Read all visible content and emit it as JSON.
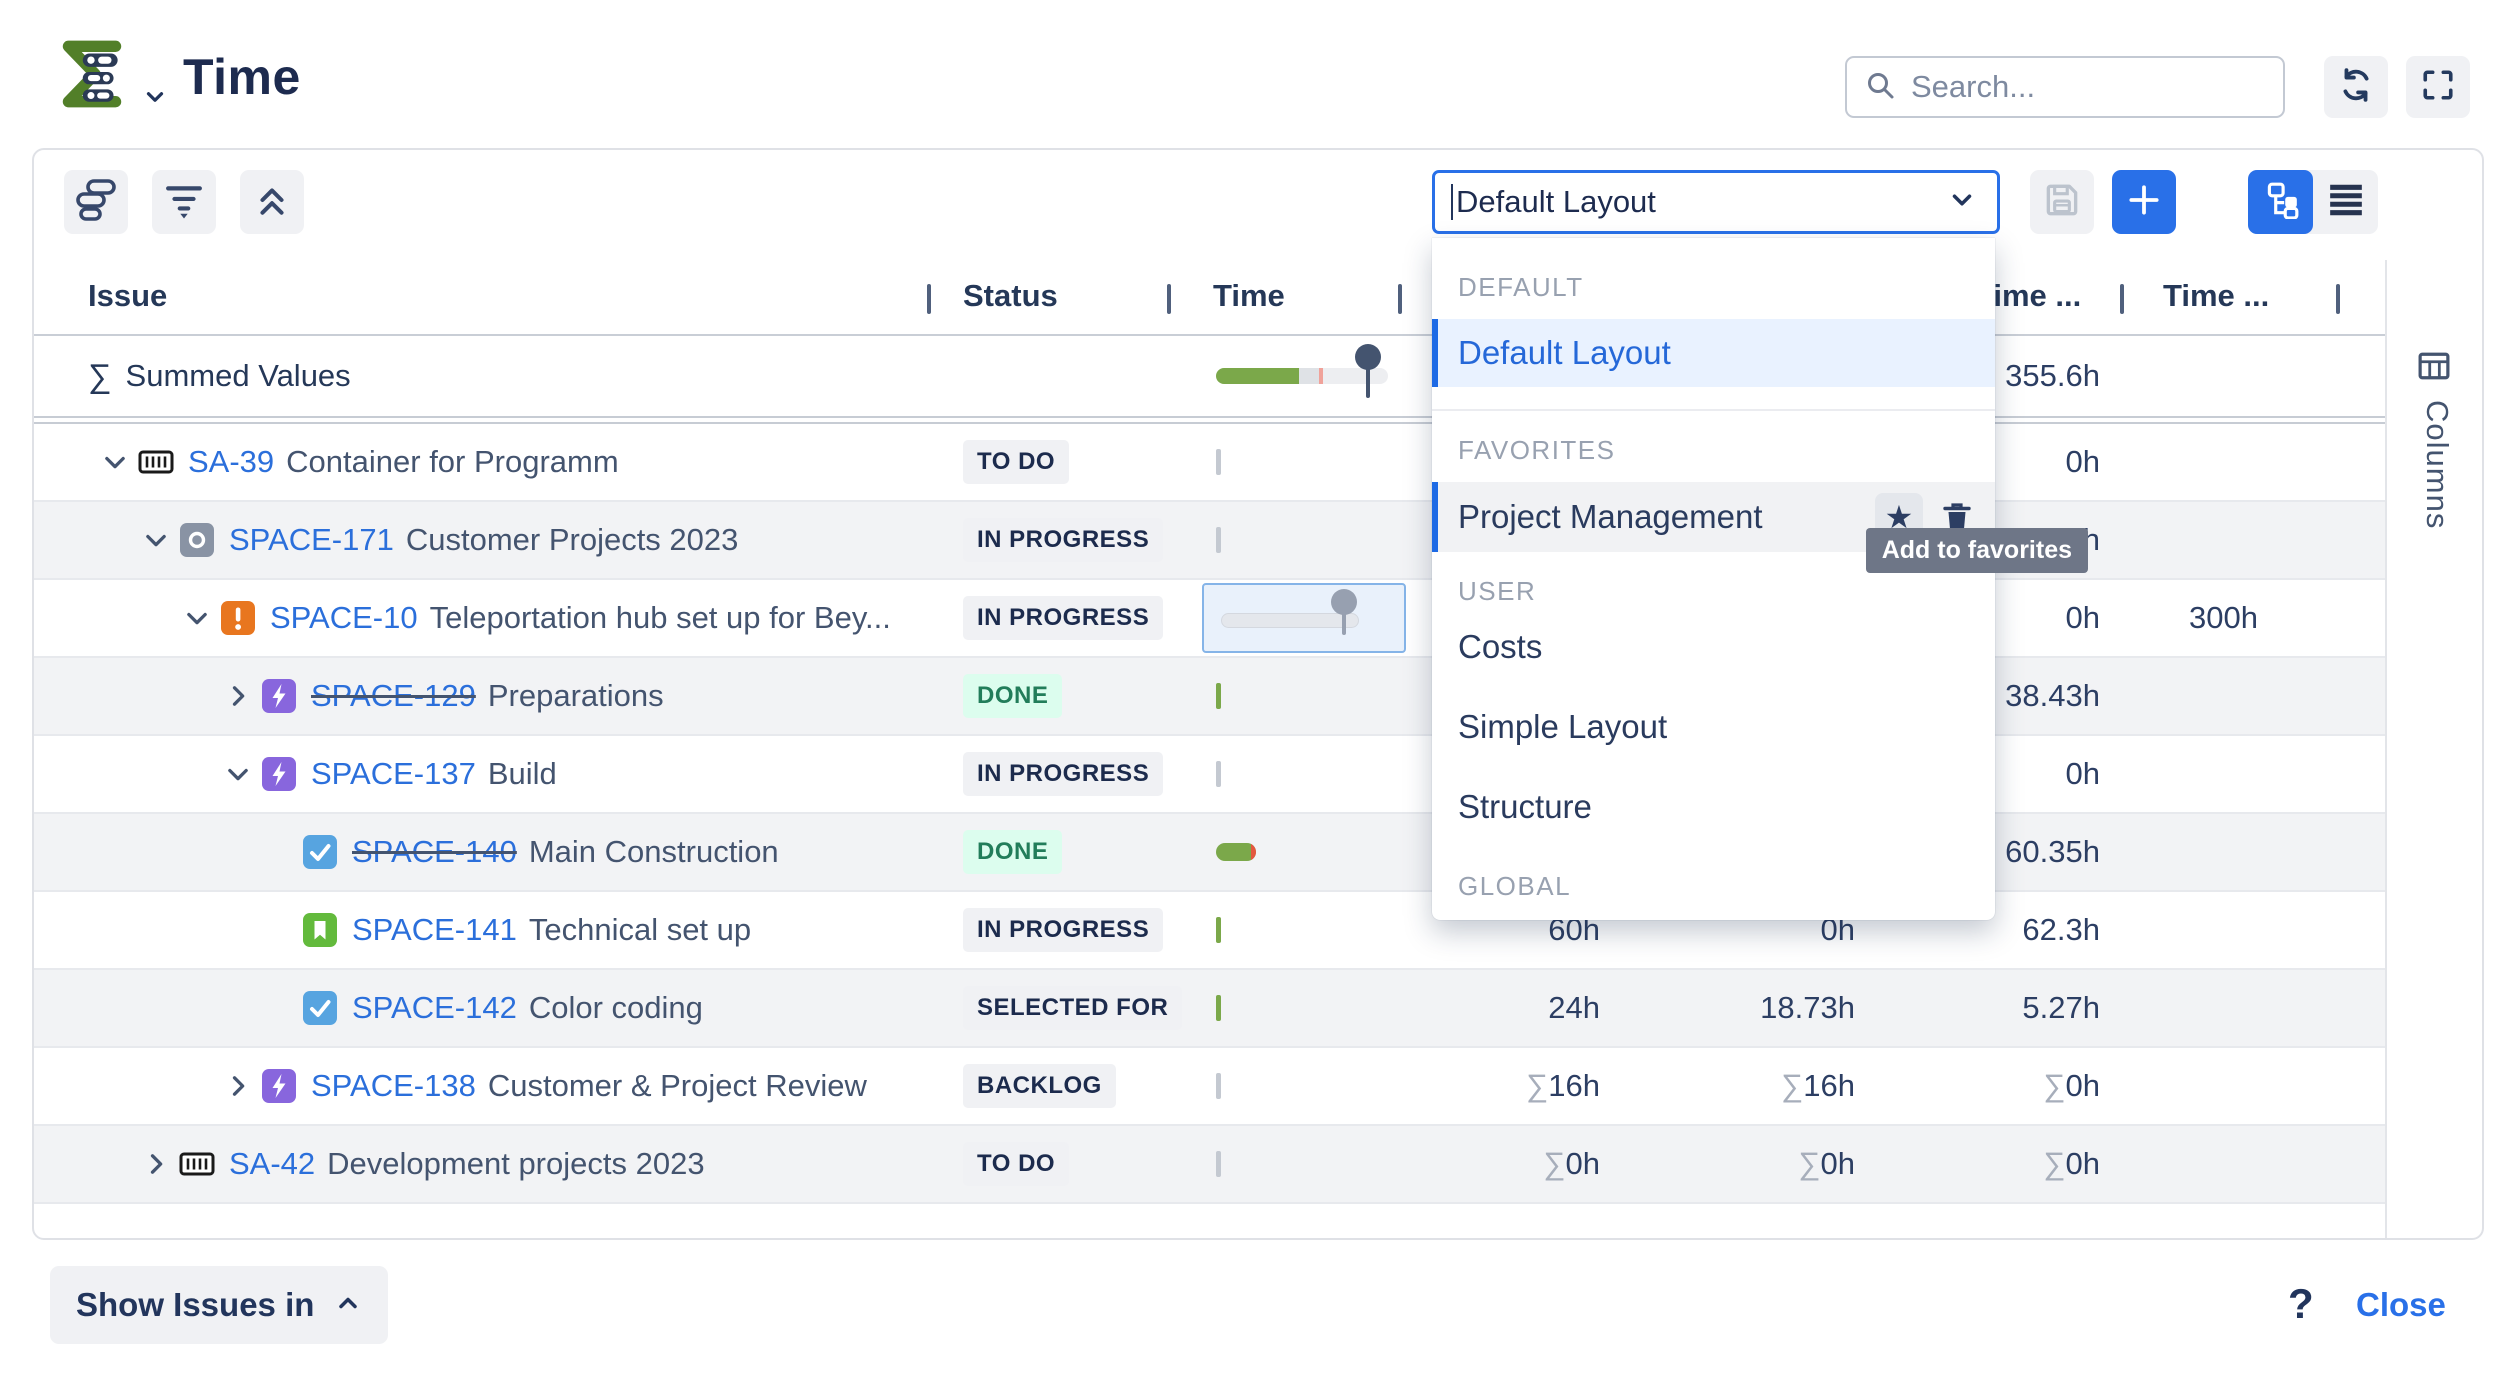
{
  "header": {
    "title": "Time",
    "search_placeholder": "Search..."
  },
  "toolbar": {
    "layout_select_value": "Default Layout"
  },
  "table": {
    "headers": [
      "Issue",
      "Status",
      "Time",
      "Time ...",
      "Time ..."
    ],
    "summed_row": {
      "sigma": "∑",
      "label": "Summed Values",
      "time_c": "355.6h"
    },
    "rows": [
      {
        "key": "SA-39",
        "summary": "Container for Programm",
        "level": 0,
        "chevron": "down",
        "icon": "container",
        "status": "TO DO",
        "status_style": "default",
        "strike": false,
        "zebra": false,
        "bar": "tick-gray",
        "time_a": "",
        "time_b": "",
        "time_c": "0h",
        "time_d": ""
      },
      {
        "key": "SPACE-171",
        "summary": "Customer Projects 2023",
        "level": 1,
        "chevron": "down",
        "icon": "release",
        "status": "IN PROGRESS",
        "status_style": "default",
        "strike": false,
        "zebra": true,
        "bar": "tick-gray",
        "time_a": "",
        "time_b": "",
        "time_c": "0h",
        "time_d": ""
      },
      {
        "key": "SPACE-10",
        "summary": "Teleportation hub set up for Bey...",
        "level": 2,
        "chevron": "down",
        "icon": "alert",
        "status": "IN PROGRESS",
        "status_style": "default",
        "strike": false,
        "zebra": false,
        "bar": "slider-selected",
        "time_a": "",
        "time_b": "",
        "time_c": "0h",
        "time_d": "300h"
      },
      {
        "key": "SPACE-129",
        "summary": "Preparations",
        "level": 3,
        "chevron": "right",
        "icon": "bolt",
        "status": "DONE",
        "status_style": "done",
        "strike": true,
        "zebra": true,
        "bar": "tick-green",
        "time_a": "",
        "time_b": "",
        "time_c": "38.43h",
        "time_d": ""
      },
      {
        "key": "SPACE-137",
        "summary": "Build",
        "level": 3,
        "chevron": "down",
        "icon": "bolt",
        "status": "IN PROGRESS",
        "status_style": "default",
        "strike": false,
        "zebra": false,
        "bar": "tick-gray",
        "time_a": "",
        "time_b": "",
        "time_c": "0h",
        "time_d": ""
      },
      {
        "key": "SPACE-140",
        "summary": "Main Construction",
        "level": 4,
        "chevron": null,
        "icon": "task",
        "status": "DONE",
        "status_style": "done",
        "strike": true,
        "zebra": true,
        "bar": "pill-green",
        "time_a": "",
        "time_b": "",
        "time_c": "60.35h",
        "time_d": ""
      },
      {
        "key": "SPACE-141",
        "summary": "Technical set up",
        "level": 4,
        "chevron": null,
        "icon": "story",
        "status": "IN PROGRESS",
        "status_style": "default",
        "strike": false,
        "zebra": false,
        "bar": "tick-green",
        "time_a": "60h",
        "time_b": "0h",
        "time_c": "62.3h",
        "time_d": ""
      },
      {
        "key": "SPACE-142",
        "summary": "Color coding",
        "level": 4,
        "chevron": null,
        "icon": "task",
        "status": "SELECTED FOR",
        "status_style": "default",
        "strike": false,
        "zebra": true,
        "bar": "tick-green",
        "time_a": "24h",
        "time_b": "18.73h",
        "time_c": "5.27h",
        "time_d": ""
      },
      {
        "key": "SPACE-138",
        "summary": "Customer & Project Review",
        "level": 3,
        "chevron": "right",
        "icon": "bolt",
        "status": "BACKLOG",
        "status_style": "default",
        "strike": false,
        "zebra": false,
        "bar": "tick-gray",
        "time_a": "∑16h",
        "time_b": "∑16h",
        "time_c": "∑0h",
        "time_d": ""
      },
      {
        "key": "SA-42",
        "summary": "Development projects 2023",
        "level": 1,
        "chevron": "right",
        "icon": "container",
        "status": "TO DO",
        "status_style": "default",
        "strike": false,
        "zebra": true,
        "bar": "tick-gray",
        "time_a": "∑0h",
        "time_b": "∑0h",
        "time_c": "∑0h",
        "time_d": ""
      }
    ]
  },
  "layout_menu": {
    "tooltip": "Add to favorites",
    "sections": [
      {
        "label": "DEFAULT",
        "items": [
          {
            "label": "Default Layout",
            "state": "selected"
          }
        ]
      },
      {
        "label": "FAVORITES",
        "items": [
          {
            "label": "Project Management",
            "state": "hovered",
            "has_actions": true
          }
        ]
      },
      {
        "label": "USER",
        "items": [
          {
            "label": "Costs"
          },
          {
            "label": "Simple Layout"
          },
          {
            "label": "Structure"
          }
        ]
      },
      {
        "label": "GLOBAL",
        "items": []
      }
    ]
  },
  "columns_panel": {
    "label": "Columns"
  },
  "footer": {
    "show_issues_label": "Show Issues in",
    "help": "?",
    "close_label": "Close"
  },
  "colors": {
    "accent_blue": "#2970e8",
    "link_blue": "#2b6fdb",
    "navy": "#172b4d",
    "green_bar": "#7ba84a",
    "red_tick": "#e4573f",
    "done_text": "#227d5a",
    "done_bg": "#dcfdee",
    "badge_bg": "#f0f1f4",
    "zebra_bg": "#f2f3f5",
    "menu_selected_bg": "#e9f2ff",
    "menu_selected_text": "#2568d8",
    "tooltip_bg": "#6e7687",
    "logo_green": "#527f29",
    "alert_orange": "#e8761f",
    "bolt_purple": "#8866dd",
    "task_blue": "#57a4e0",
    "story_green": "#63ba3c",
    "release_gray": "#8993a4"
  }
}
